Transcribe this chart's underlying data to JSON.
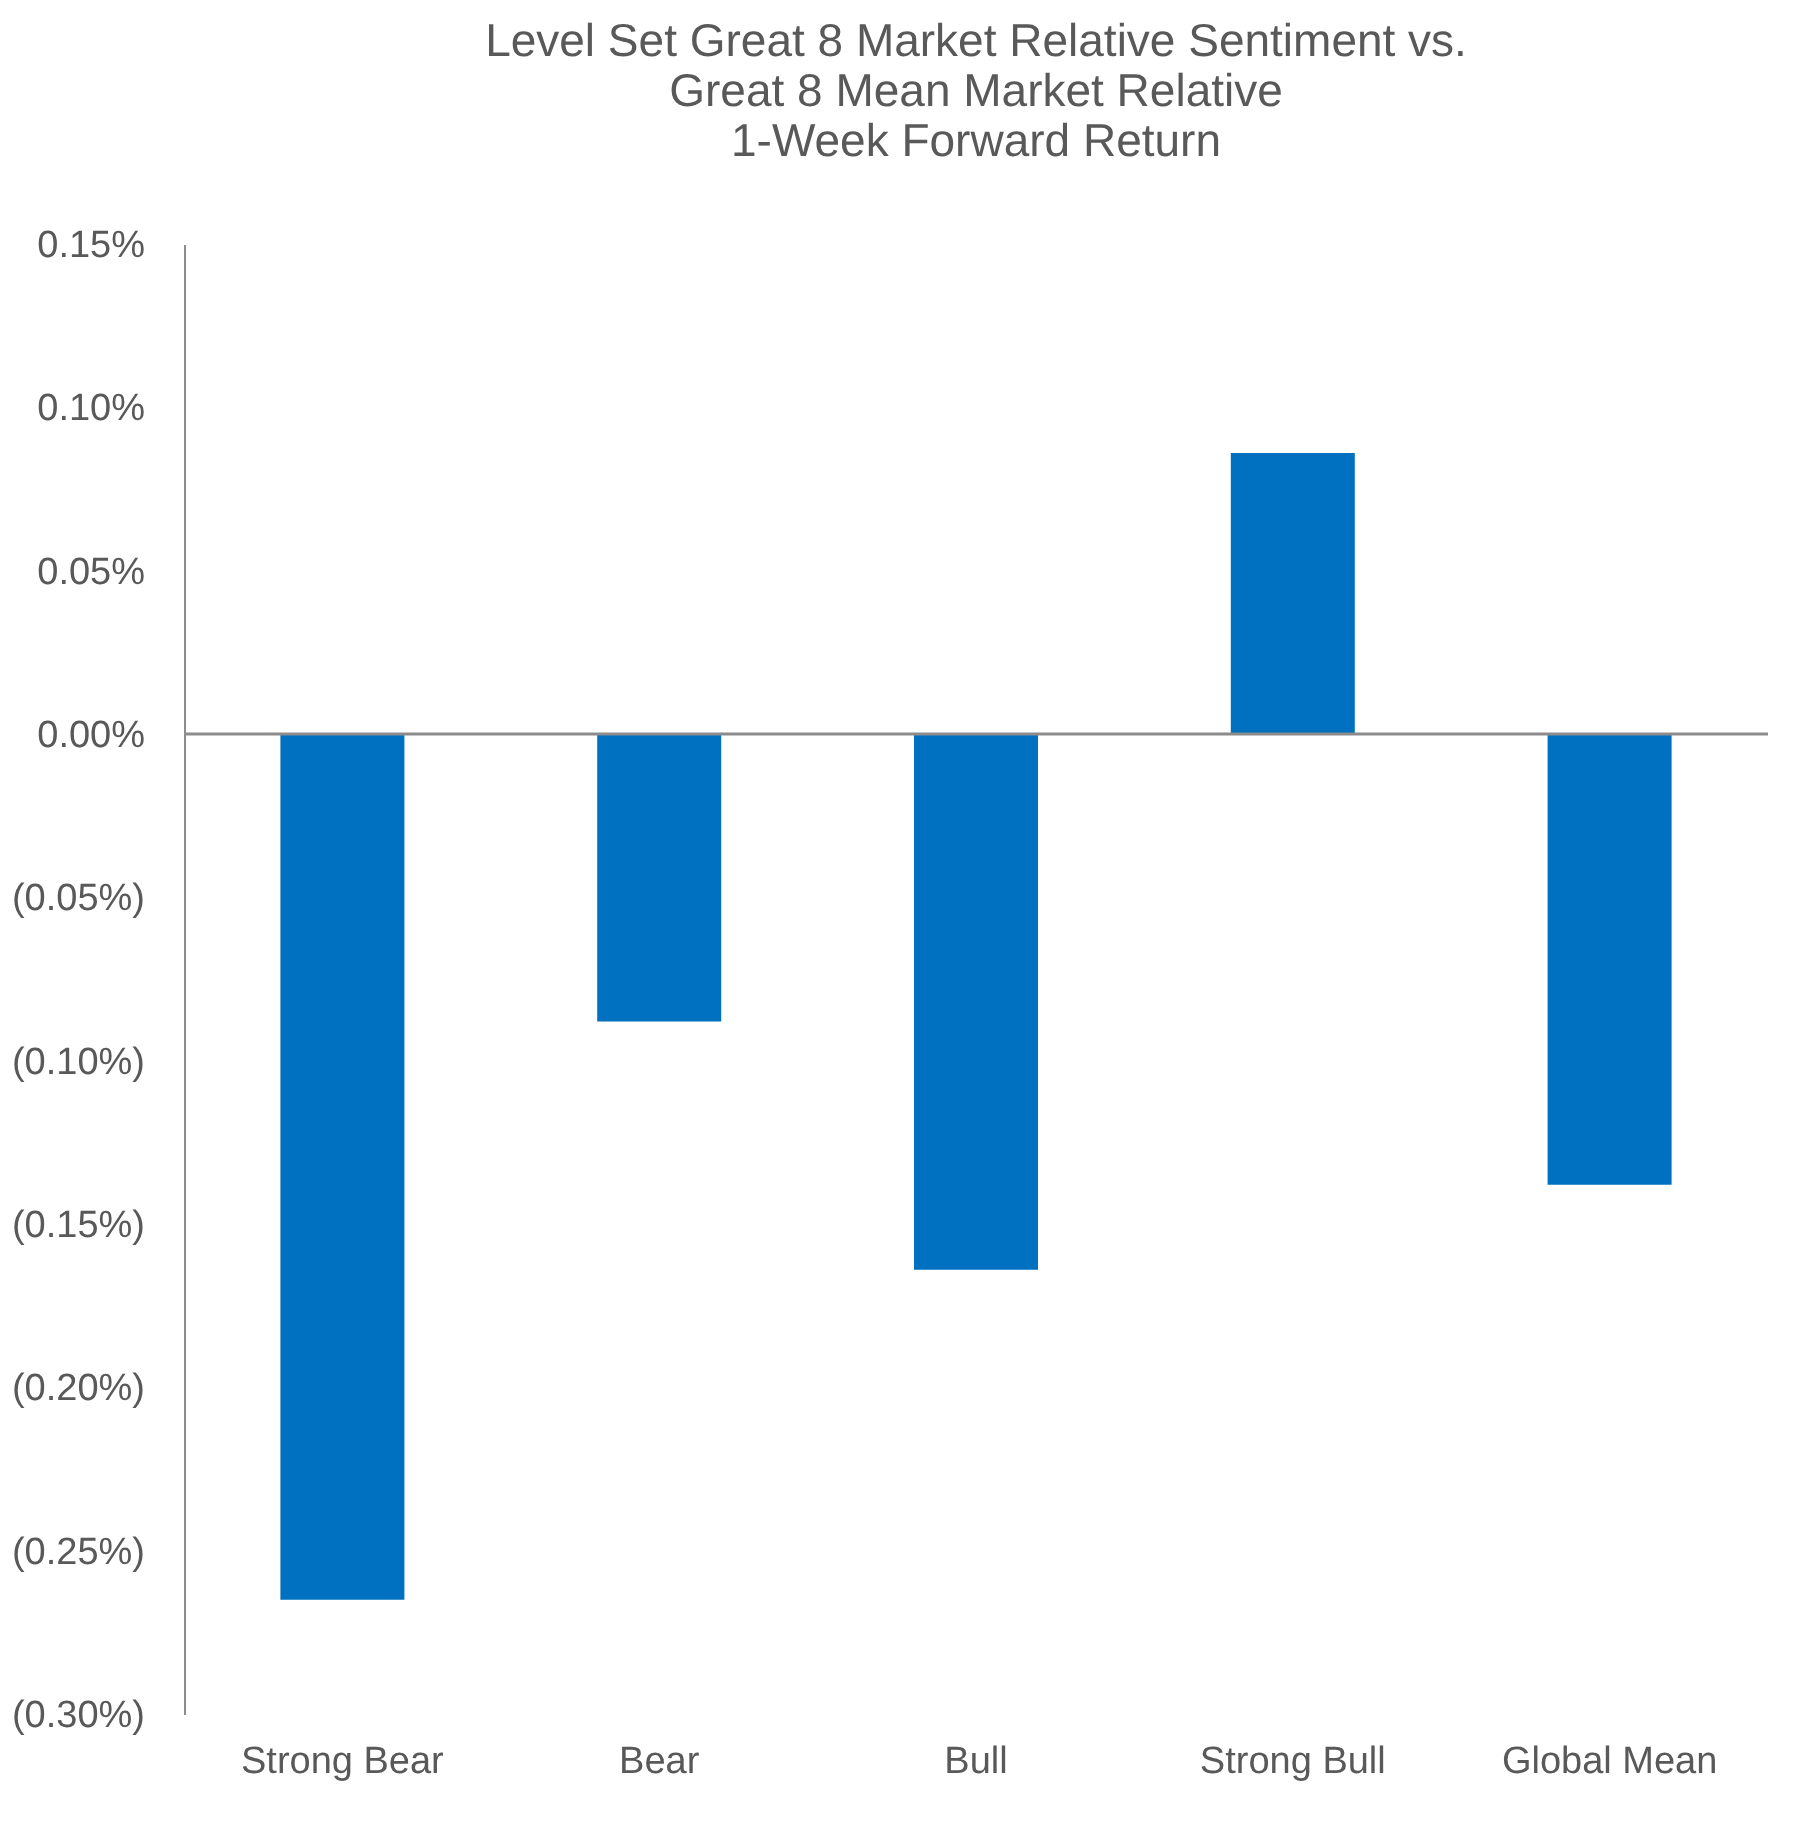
{
  "chart_data": {
    "type": "bar",
    "title": [
      "Level Set Great 8 Market Relative Sentiment vs.",
      "Great 8 Mean Market Relative",
      "1-Week Forward Return"
    ],
    "categories": [
      "Strong Bear",
      "Bear",
      "Bull",
      "Strong Bull",
      "Global Mean"
    ],
    "values": [
      -0.265,
      -0.088,
      -0.164,
      0.086,
      -0.138
    ],
    "color": "#0070c0",
    "ylim": [
      -0.3,
      0.15
    ],
    "yticks": [
      {
        "value": -0.3,
        "label": "(0.30%)"
      },
      {
        "value": -0.25,
        "label": "(0.25%)"
      },
      {
        "value": -0.2,
        "label": "(0.20%)"
      },
      {
        "value": -0.15,
        "label": "(0.15%)"
      },
      {
        "value": -0.1,
        "label": "(0.10%)"
      },
      {
        "value": -0.05,
        "label": "(0.05%)"
      },
      {
        "value": 0,
        "label": "0.00%"
      },
      {
        "value": 0.05,
        "label": "0.05%"
      },
      {
        "value": 0.1,
        "label": "0.10%"
      },
      {
        "value": 0.15,
        "label": "0.15%"
      }
    ],
    "ref_lines": [
      {
        "axis": "y",
        "value": 0,
        "color": "#8c8c8c"
      }
    ],
    "grid": false
  }
}
